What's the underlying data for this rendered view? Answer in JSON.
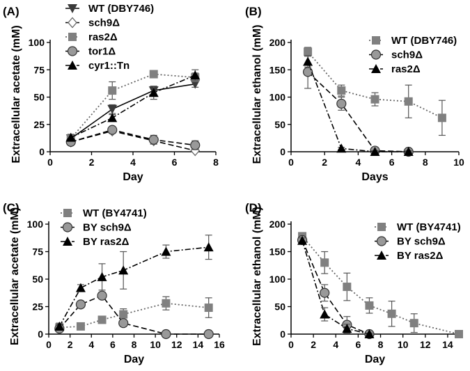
{
  "chart_data": [
    {
      "type": "line",
      "panel_label": "(A)",
      "xlabel": "Day",
      "ylabel": "Extracellular acetate (mM)",
      "xlim": [
        0,
        8
      ],
      "ylim": [
        0,
        100
      ],
      "xticks": [
        0,
        2,
        4,
        6,
        8
      ],
      "yticks": [
        0,
        25,
        50,
        75,
        100
      ],
      "legend_position": "top-left",
      "series": [
        {
          "name": "WT (DBY746)",
          "marker": "triangle-down",
          "line": "solid",
          "x": [
            1,
            3,
            5,
            7
          ],
          "y": [
            12,
            39,
            56,
            62
          ],
          "err": [
            3,
            4,
            4,
            3
          ]
        },
        {
          "name": "sch9Δ",
          "marker": "diamond-open",
          "line": "dashed",
          "x": [
            1,
            3,
            5,
            7
          ],
          "y": [
            9,
            19,
            10,
            1
          ],
          "err": [
            2,
            2,
            3,
            2
          ]
        },
        {
          "name": "ras2Δ",
          "marker": "square",
          "line": "dotted",
          "x": [
            1,
            3,
            5,
            7
          ],
          "y": [
            12,
            56,
            71,
            68
          ],
          "err": [
            3,
            8,
            3,
            4
          ]
        },
        {
          "name": "tor1Δ",
          "marker": "circle",
          "line": "dashed",
          "x": [
            1,
            3,
            5,
            7
          ],
          "y": [
            9,
            20,
            11,
            6
          ],
          "err": [
            2,
            2,
            4,
            4
          ]
        },
        {
          "name": "cyr1::Tn",
          "marker": "triangle-up",
          "line": "dashdot",
          "x": [
            1,
            3,
            5,
            7
          ],
          "y": [
            13,
            31,
            54,
            70
          ],
          "err": [
            3,
            3,
            6,
            5
          ]
        }
      ]
    },
    {
      "type": "line",
      "panel_label": "(B)",
      "xlabel": "Days",
      "ylabel": "Extracellular ethanol (mM)",
      "xlim": [
        0,
        10
      ],
      "ylim": [
        0,
        200
      ],
      "xticks": [
        0,
        2,
        4,
        6,
        8,
        10
      ],
      "yticks": [
        0,
        50,
        100,
        150,
        200
      ],
      "legend_position": "top-right",
      "series": [
        {
          "name": "WT (DBY746)",
          "marker": "square",
          "line": "dotted",
          "x": [
            1,
            3,
            5,
            7,
            9
          ],
          "y": [
            183,
            112,
            96,
            92,
            62
          ],
          "err": [
            8,
            10,
            12,
            30,
            32
          ]
        },
        {
          "name": "sch9Δ",
          "marker": "circle",
          "line": "dashed",
          "x": [
            1,
            3,
            5,
            7
          ],
          "y": [
            146,
            88,
            2,
            0
          ],
          "err": [
            30,
            12,
            3,
            2
          ]
        },
        {
          "name": "ras2Δ",
          "marker": "triangle-up",
          "line": "dashdot",
          "x": [
            1,
            3,
            5,
            7
          ],
          "y": [
            165,
            6,
            0,
            0
          ],
          "err": [
            10,
            2,
            2,
            2
          ]
        }
      ]
    },
    {
      "type": "line",
      "panel_label": "(C)",
      "xlabel": "Day",
      "ylabel": "Extracellular acetate (mM)",
      "xlim": [
        0,
        16
      ],
      "ylim": [
        0,
        100
      ],
      "xticks": [
        0,
        2,
        4,
        6,
        8,
        10,
        12,
        14,
        16
      ],
      "yticks": [
        0,
        25,
        50,
        75,
        100
      ],
      "legend_position": "top-left",
      "series": [
        {
          "name": "WT (BY4741)",
          "marker": "square",
          "line": "dotted",
          "x": [
            1,
            3,
            5,
            7,
            11,
            15
          ],
          "y": [
            6,
            7,
            13,
            18,
            28,
            24
          ],
          "err": [
            2,
            2,
            2,
            5,
            6,
            9
          ]
        },
        {
          "name": "BY sch9Δ",
          "marker": "circle",
          "line": "dashed",
          "x": [
            1,
            3,
            5,
            7,
            11,
            15
          ],
          "y": [
            5,
            27,
            35,
            10,
            0,
            0
          ],
          "err": [
            2,
            3,
            3,
            3,
            1,
            1
          ]
        },
        {
          "name": "BY ras2Δ",
          "marker": "triangle-up",
          "line": "dashdot",
          "x": [
            1,
            3,
            5,
            7,
            11,
            15
          ],
          "y": [
            7,
            42,
            52,
            58,
            75,
            79
          ],
          "err": [
            3,
            3,
            12,
            17,
            6,
            11
          ]
        }
      ]
    },
    {
      "type": "line",
      "panel_label": "(D)",
      "xlabel": "Day",
      "ylabel": "Extracellular ethanol (mM)",
      "xlim": [
        0,
        15
      ],
      "ylim": [
        0,
        200
      ],
      "xticks": [
        0,
        2,
        4,
        6,
        8,
        10,
        12,
        14
      ],
      "yticks": [
        0,
        50,
        100,
        150,
        200
      ],
      "legend_position": "top-right",
      "series": [
        {
          "name": "WT (BY4741)",
          "marker": "square",
          "line": "dotted",
          "x": [
            1,
            3,
            5,
            7,
            9,
            11,
            15
          ],
          "y": [
            178,
            130,
            86,
            52,
            37,
            20,
            0
          ],
          "err": [
            5,
            20,
            25,
            14,
            23,
            17,
            0
          ]
        },
        {
          "name": "BY sch9Δ",
          "marker": "circle",
          "line": "dashed",
          "x": [
            1,
            3,
            5,
            7
          ],
          "y": [
            171,
            75,
            17,
            0
          ],
          "err": [
            5,
            15,
            15,
            3
          ]
        },
        {
          "name": "BY ras2Δ",
          "marker": "triangle-up",
          "line": "dashdot",
          "x": [
            1,
            3,
            5,
            7
          ],
          "y": [
            170,
            36,
            10,
            0
          ],
          "err": [
            5,
            12,
            8,
            2
          ]
        }
      ]
    }
  ]
}
